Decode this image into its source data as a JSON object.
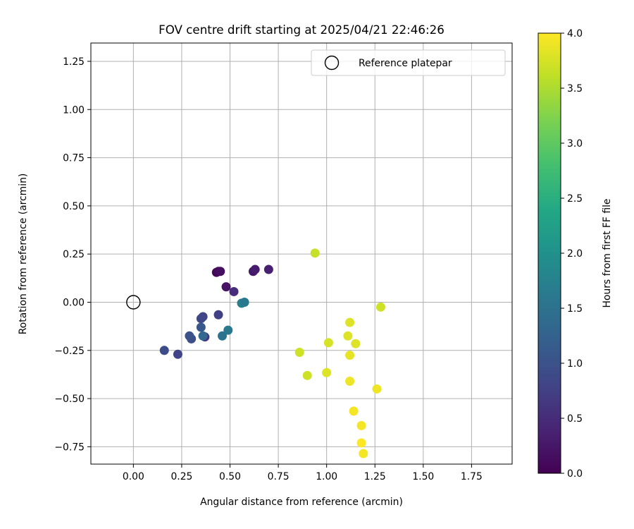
{
  "chart_data": {
    "type": "scatter",
    "title": "FOV centre drift starting at 2025/04/21 22:46:26",
    "xlabel": "Angular distance from reference (arcmin)",
    "ylabel": "Rotation from reference (arcmin)",
    "xlim": [
      -0.22,
      1.96
    ],
    "ylim": [
      -0.84,
      1.345
    ],
    "xticks": [
      0.0,
      0.25,
      0.5,
      0.75,
      1.0,
      1.25,
      1.5,
      1.75
    ],
    "xtick_labels": [
      "0.00",
      "0.25",
      "0.50",
      "0.75",
      "1.00",
      "1.25",
      "1.50",
      "1.75"
    ],
    "yticks": [
      -0.75,
      -0.5,
      -0.25,
      0.0,
      0.25,
      0.5,
      0.75,
      1.0,
      1.25
    ],
    "ytick_labels": [
      "−0.75",
      "−0.50",
      "−0.25",
      "0.00",
      "0.25",
      "0.50",
      "0.75",
      "1.00",
      "1.25"
    ],
    "grid": true,
    "legend": {
      "placement": "top-right",
      "entries": [
        "Reference platepar"
      ]
    },
    "reference_point": {
      "x": 0.0,
      "y": 0.0
    },
    "colorbar": {
      "label": "Hours from first FF file",
      "range": [
        0.0,
        4.0
      ],
      "colormap": "viridis",
      "ticks": [
        0.0,
        0.5,
        1.0,
        1.5,
        2.0,
        2.5,
        3.0,
        3.5,
        4.0
      ],
      "tick_labels": [
        "0.0",
        "0.5",
        "1.0",
        "1.5",
        "2.0",
        "2.5",
        "3.0",
        "3.5",
        "4.0"
      ]
    },
    "points": [
      {
        "x": 0.43,
        "y": 0.155,
        "h": 0.05
      },
      {
        "x": 0.44,
        "y": 0.16,
        "h": 0.1
      },
      {
        "x": 0.45,
        "y": 0.16,
        "h": 0.15
      },
      {
        "x": 0.48,
        "y": 0.08,
        "h": 0.2
      },
      {
        "x": 0.62,
        "y": 0.16,
        "h": 0.25
      },
      {
        "x": 0.63,
        "y": 0.17,
        "h": 0.3
      },
      {
        "x": 0.7,
        "y": 0.17,
        "h": 0.35
      },
      {
        "x": 0.52,
        "y": 0.055,
        "h": 0.5
      },
      {
        "x": 0.37,
        "y": -0.18,
        "h": 0.6
      },
      {
        "x": 0.44,
        "y": -0.065,
        "h": 0.75
      },
      {
        "x": 0.36,
        "y": -0.075,
        "h": 0.8
      },
      {
        "x": 0.35,
        "y": -0.085,
        "h": 0.85
      },
      {
        "x": 0.23,
        "y": -0.27,
        "h": 0.8
      },
      {
        "x": 0.16,
        "y": -0.25,
        "h": 0.9
      },
      {
        "x": 0.3,
        "y": -0.19,
        "h": 0.95
      },
      {
        "x": 0.29,
        "y": -0.175,
        "h": 1.0
      },
      {
        "x": 0.35,
        "y": -0.13,
        "h": 1.1
      },
      {
        "x": 0.36,
        "y": -0.175,
        "h": 1.35
      },
      {
        "x": 0.46,
        "y": -0.175,
        "h": 1.5
      },
      {
        "x": 0.49,
        "y": -0.145,
        "h": 1.6
      },
      {
        "x": 0.56,
        "y": -0.005,
        "h": 1.75
      },
      {
        "x": 0.575,
        "y": 0.0,
        "h": 1.6
      },
      {
        "x": 0.94,
        "y": 0.255,
        "h": 3.65
      },
      {
        "x": 0.86,
        "y": -0.26,
        "h": 3.7
      },
      {
        "x": 0.9,
        "y": -0.38,
        "h": 3.7
      },
      {
        "x": 1.01,
        "y": -0.21,
        "h": 3.75
      },
      {
        "x": 1.0,
        "y": -0.365,
        "h": 3.8
      },
      {
        "x": 1.12,
        "y": -0.105,
        "h": 3.8
      },
      {
        "x": 1.11,
        "y": -0.175,
        "h": 3.8
      },
      {
        "x": 1.15,
        "y": -0.215,
        "h": 3.8
      },
      {
        "x": 1.12,
        "y": -0.275,
        "h": 3.85
      },
      {
        "x": 1.28,
        "y": -0.025,
        "h": 3.7
      },
      {
        "x": 1.12,
        "y": -0.41,
        "h": 3.9
      },
      {
        "x": 1.26,
        "y": -0.45,
        "h": 3.9
      },
      {
        "x": 1.14,
        "y": -0.565,
        "h": 3.95
      },
      {
        "x": 1.18,
        "y": -0.64,
        "h": 3.95
      },
      {
        "x": 1.18,
        "y": -0.73,
        "h": 4.0
      },
      {
        "x": 1.19,
        "y": -0.785,
        "h": 3.95
      }
    ]
  }
}
